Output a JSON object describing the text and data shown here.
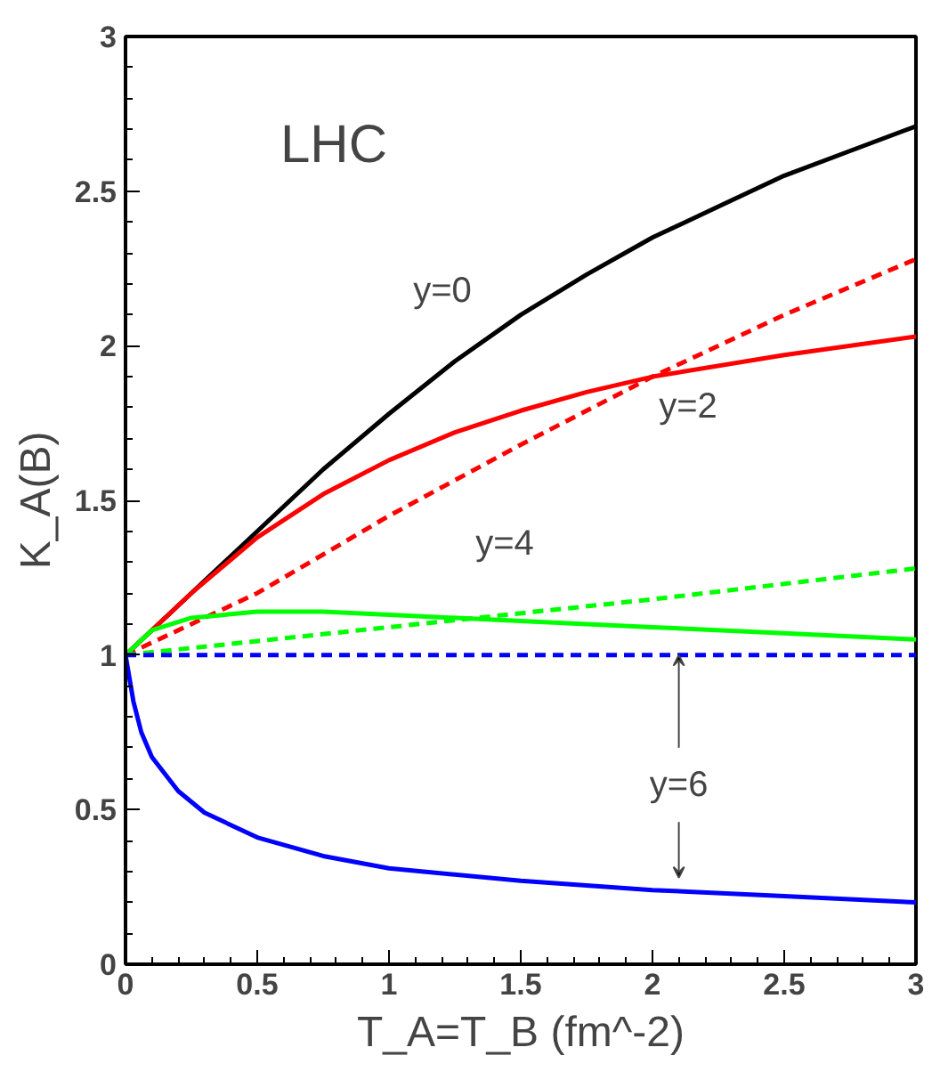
{
  "chart_data": {
    "type": "line",
    "xlabel": "T_A=T_B (fm^-2)",
    "ylabel": "K_A(B)",
    "xlim": [
      0,
      3
    ],
    "ylim": [
      0,
      3
    ],
    "xticks": [
      0,
      0.5,
      1,
      1.5,
      2,
      2.5,
      3
    ],
    "yticks": [
      0,
      0.5,
      1,
      1.5,
      2,
      2.5,
      3
    ],
    "grid": false,
    "marker": "none",
    "annotations": [
      "LHC",
      "y=0",
      "y=2",
      "y=4",
      {
        "text": "y=6",
        "x": 2.1,
        "y": 1
      }
    ],
    "series": [
      {
        "color": "#000000",
        "line_style": "solid",
        "x": [
          0,
          0.25,
          0.5,
          0.75,
          1,
          1.25,
          1.5,
          1.75,
          2,
          2.25,
          2.5,
          2.75,
          3
        ],
        "values": [
          1,
          1.2,
          1.4,
          1.6,
          1.78,
          1.95,
          2.1,
          2.23,
          2.35,
          2.45,
          2.55,
          2.63,
          2.71
        ]
      },
      {
        "color": "#ff0000",
        "line_style": "solid",
        "x": [
          0,
          0.25,
          0.5,
          0.75,
          1,
          1.25,
          1.5,
          1.75,
          2,
          2.5,
          3
        ],
        "values": [
          1,
          1.2,
          1.38,
          1.52,
          1.63,
          1.72,
          1.79,
          1.85,
          1.9,
          1.97,
          2.03
        ]
      },
      {
        "color": "#ff0000",
        "line_style": "dashed",
        "x": [
          0,
          0.5,
          1,
          1.5,
          2,
          2.5,
          3
        ],
        "values": [
          1,
          1.2,
          1.45,
          1.68,
          1.9,
          2.1,
          2.28
        ]
      },
      {
        "color": "#00ff00",
        "line_style": "solid",
        "x": [
          0,
          0.1,
          0.25,
          0.5,
          0.75,
          1,
          1.5,
          2,
          2.5,
          3
        ],
        "values": [
          1,
          1.08,
          1.12,
          1.14,
          1.14,
          1.13,
          1.11,
          1.09,
          1.07,
          1.05
        ]
      },
      {
        "color": "#00ff00",
        "line_style": "dashed",
        "x": [
          0,
          1,
          2,
          3
        ],
        "values": [
          1,
          1.09,
          1.18,
          1.28
        ]
      },
      {
        "color": "#0000ff",
        "line_style": "dashed",
        "x": [
          0,
          3
        ],
        "values": [
          1,
          1
        ]
      },
      {
        "color": "#0000ff",
        "line_style": "solid",
        "x": [
          0,
          0.03,
          0.06,
          0.1,
          0.2,
          0.3,
          0.5,
          0.75,
          1,
          1.5,
          2,
          2.5,
          3
        ],
        "values": [
          1,
          0.85,
          0.75,
          0.67,
          0.56,
          0.49,
          0.41,
          0.35,
          0.31,
          0.27,
          0.24,
          0.22,
          0.2
        ]
      }
    ]
  }
}
